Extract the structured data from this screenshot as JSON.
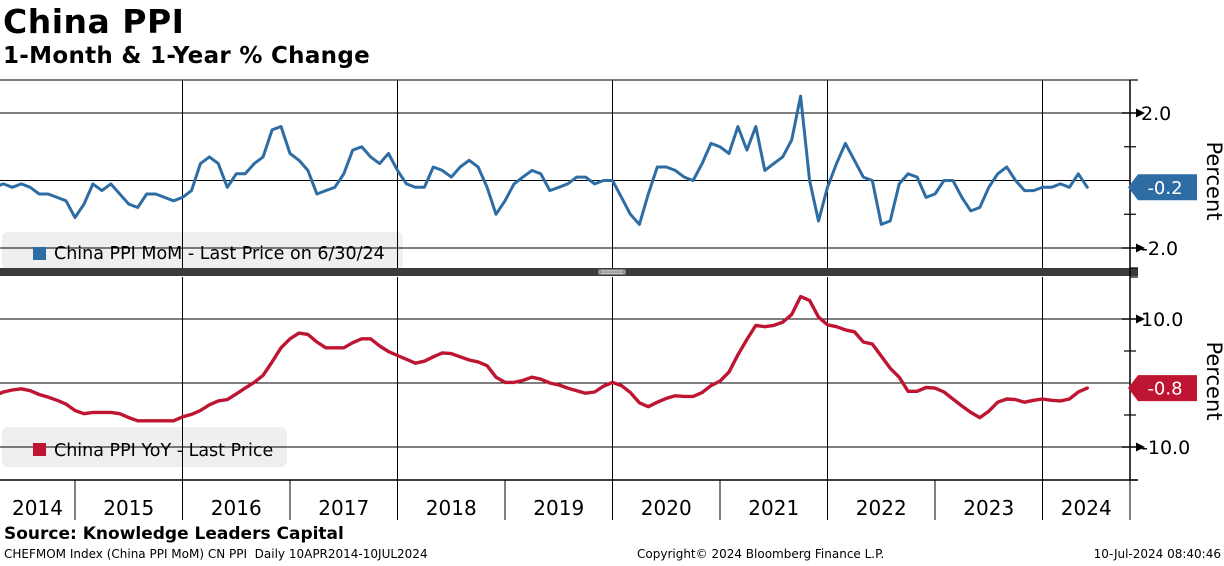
{
  "header": {
    "title": "China PPI",
    "subtitle": "1-Month & 1-Year % Change"
  },
  "colors": {
    "mom_blue": "#2E6DA4",
    "yoy_red": "#BE1632",
    "grid": "#000000",
    "legend_bg": "#EFEFEF",
    "divider": "#3B3B3B",
    "divider_handle": "#8E8E8E",
    "badge_text": "#FFFFFF"
  },
  "panels": {
    "top": {
      "legend_label": "China PPI MoM - Last Price on 6/30/24",
      "axis_title": "Percent",
      "tick_labels": [
        "2.0",
        "-2.0"
      ],
      "last_price_badge": "-0.2"
    },
    "bottom": {
      "legend_label": "China PPI YoY - Last Price",
      "axis_title": "Percent",
      "tick_labels": [
        "10.0",
        "-10.0"
      ],
      "last_price_badge": "-0.8"
    }
  },
  "xaxis": {
    "year_labels": [
      "2014",
      "2015",
      "2016",
      "2017",
      "2018",
      "2019",
      "2020",
      "2021",
      "2022",
      "2023",
      "2024"
    ]
  },
  "footer": {
    "source": "Source: Knowledge Leaders Capital",
    "ticker_info": "CHEFMOM Index (China PPI MoM) CN PPI  Daily 10APR2014-10JUL2024",
    "copyright": "Copyright© 2024 Bloomberg Finance L.P.",
    "timestamp": "10-Jul-2024 08:40:46"
  },
  "chart_data": [
    {
      "type": "line",
      "name": "China PPI MoM",
      "panel": "top",
      "legend": "China PPI MoM - Last Price on 6/30/24",
      "ylabel": "Percent",
      "yticks": [
        2.0,
        0.0,
        -2.0
      ],
      "ylim": [
        -2.6,
        3.0
      ],
      "start": "2014-04",
      "freq": "monthly",
      "last_value": -0.2,
      "last_date": "6/30/24",
      "color": "#2E6DA4",
      "values": [
        -0.2,
        -0.1,
        -0.2,
        -0.1,
        -0.2,
        -0.4,
        -0.4,
        -0.5,
        -0.6,
        -1.1,
        -0.7,
        -0.1,
        -0.3,
        -0.1,
        -0.4,
        -0.7,
        -0.8,
        -0.4,
        -0.4,
        -0.5,
        -0.6,
        -0.5,
        -0.3,
        0.5,
        0.7,
        0.5,
        -0.2,
        0.2,
        0.2,
        0.5,
        0.7,
        1.5,
        1.6,
        0.8,
        0.6,
        0.3,
        -0.4,
        -0.3,
        -0.2,
        0.2,
        0.9,
        1.0,
        0.7,
        0.5,
        0.8,
        0.3,
        -0.1,
        -0.2,
        -0.2,
        0.4,
        0.3,
        0.1,
        0.4,
        0.6,
        0.4,
        -0.2,
        -1.0,
        -0.6,
        -0.1,
        0.1,
        0.3,
        0.2,
        -0.3,
        -0.2,
        -0.1,
        0.1,
        0.1,
        -0.1,
        0.0,
        0.0,
        -0.5,
        -1.0,
        -1.3,
        -0.4,
        0.4,
        0.4,
        0.3,
        0.1,
        0.0,
        0.5,
        1.1,
        1.0,
        0.8,
        1.6,
        0.9,
        1.6,
        0.3,
        0.5,
        0.7,
        1.2,
        2.5,
        0.0,
        -1.2,
        -0.2,
        0.5,
        1.1,
        0.6,
        0.1,
        0.0,
        -1.3,
        -1.2,
        -0.1,
        0.2,
        0.1,
        -0.5,
        -0.4,
        0.0,
        0.0,
        -0.5,
        -0.9,
        -0.8,
        -0.2,
        0.2,
        0.4,
        0.0,
        -0.3,
        -0.3,
        -0.2,
        -0.2,
        -0.1,
        -0.2,
        0.2,
        -0.2
      ]
    },
    {
      "type": "line",
      "name": "China PPI YoY",
      "panel": "bottom",
      "legend": "China PPI YoY - Last Price",
      "ylabel": "Percent",
      "yticks": [
        10.0,
        0.0,
        -10.0
      ],
      "ylim": [
        -16.0,
        16.5
      ],
      "start": "2014-04",
      "freq": "monthly",
      "last_value": -0.8,
      "color": "#BE1632",
      "values": [
        -2.0,
        -1.4,
        -1.1,
        -0.9,
        -1.2,
        -1.8,
        -2.2,
        -2.7,
        -3.3,
        -4.3,
        -4.8,
        -4.6,
        -4.6,
        -4.6,
        -4.8,
        -5.4,
        -5.9,
        -5.9,
        -5.9,
        -5.9,
        -5.9,
        -5.3,
        -4.9,
        -4.3,
        -3.4,
        -2.8,
        -2.6,
        -1.7,
        -0.8,
        0.1,
        1.2,
        3.3,
        5.5,
        6.9,
        7.8,
        7.6,
        6.4,
        5.5,
        5.5,
        5.5,
        6.3,
        6.9,
        6.9,
        5.8,
        4.9,
        4.3,
        3.7,
        3.1,
        3.4,
        4.1,
        4.7,
        4.6,
        4.1,
        3.6,
        3.3,
        2.7,
        0.9,
        0.1,
        0.1,
        0.4,
        0.9,
        0.6,
        0.0,
        -0.3,
        -0.8,
        -1.2,
        -1.6,
        -1.4,
        -0.5,
        0.1,
        -0.4,
        -1.5,
        -3.1,
        -3.7,
        -3.0,
        -2.4,
        -2.0,
        -2.1,
        -2.1,
        -1.5,
        -0.4,
        0.3,
        1.7,
        4.4,
        6.8,
        9.0,
        8.8,
        9.0,
        9.5,
        10.7,
        13.5,
        12.9,
        10.3,
        9.1,
        8.8,
        8.3,
        8.0,
        6.4,
        6.1,
        4.2,
        2.3,
        0.9,
        -1.3,
        -1.3,
        -0.7,
        -0.8,
        -1.4,
        -2.5,
        -3.6,
        -4.6,
        -5.4,
        -4.4,
        -3.0,
        -2.5,
        -2.6,
        -3.0,
        -2.7,
        -2.5,
        -2.7,
        -2.8,
        -2.5,
        -1.4,
        -0.8
      ]
    }
  ]
}
